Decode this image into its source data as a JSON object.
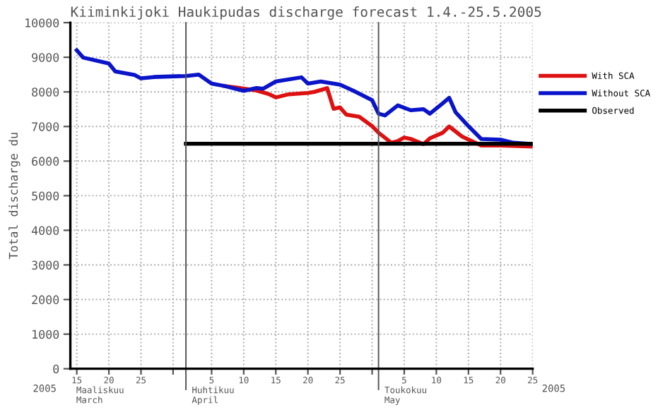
{
  "chart_data": {
    "type": "line",
    "title": "Kiiminkijoki Haukipudas discharge forecast 1.4.-25.5.2005",
    "ylabel": "Total discharge du",
    "series": [
      {
        "name": "With SCA",
        "color": "#dd1111",
        "x": [
          "2005-04-07",
          "2005-04-09",
          "2005-04-12",
          "2005-04-14",
          "2005-04-15",
          "2005-04-17",
          "2005-04-20",
          "2005-04-21",
          "2005-04-23",
          "2005-04-24",
          "2005-04-25",
          "2005-04-26",
          "2005-04-28",
          "2005-04-30",
          "2005-05-01",
          "2005-05-03",
          "2005-05-04",
          "2005-05-05",
          "2005-05-06",
          "2005-05-08",
          "2005-05-09",
          "2005-05-11",
          "2005-05-12",
          "2005-05-14",
          "2005-05-17",
          "2005-05-20",
          "2005-05-25"
        ],
        "values": [
          8170,
          8120,
          8040,
          7930,
          7840,
          7930,
          7970,
          8000,
          8110,
          7510,
          7550,
          7340,
          7280,
          7010,
          6820,
          6530,
          6580,
          6680,
          6640,
          6490,
          6660,
          6820,
          7000,
          6710,
          6450,
          6450,
          6420
        ]
      },
      {
        "name": "Without SCA",
        "color": "#0a14c8",
        "x": [
          "2005-03-15",
          "2005-03-16",
          "2005-03-20",
          "2005-03-21",
          "2005-03-24",
          "2005-03-25",
          "2005-03-27",
          "2005-04-01",
          "2005-04-03",
          "2005-04-05",
          "2005-04-07",
          "2005-04-10",
          "2005-04-12",
          "2005-04-13",
          "2005-04-15",
          "2005-04-19",
          "2005-04-20",
          "2005-04-22",
          "2005-04-25",
          "2005-04-27",
          "2005-04-30",
          "2005-05-01",
          "2005-05-02",
          "2005-05-04",
          "2005-05-06",
          "2005-05-08",
          "2005-05-09",
          "2005-05-11",
          "2005-05-12",
          "2005-05-13",
          "2005-05-15",
          "2005-05-17",
          "2005-05-20",
          "2005-05-22",
          "2005-05-25"
        ],
        "values": [
          9200,
          8990,
          8820,
          8590,
          8490,
          8390,
          8430,
          8460,
          8500,
          8240,
          8170,
          8030,
          8110,
          8090,
          8300,
          8420,
          8240,
          8300,
          8210,
          8040,
          7760,
          7370,
          7320,
          7610,
          7470,
          7500,
          7370,
          7670,
          7830,
          7410,
          7010,
          6640,
          6620,
          6530,
          6490
        ]
      },
      {
        "name": "Observed",
        "color": "#000000",
        "x": [
          "2005-04-01",
          "2005-05-25"
        ],
        "values": [
          6500,
          6500
        ]
      }
    ],
    "xlim": [
      "2005-03-14",
      "2005-05-25"
    ],
    "xticks": [
      {
        "value": "2005-03-15",
        "label": "15"
      },
      {
        "value": "2005-03-20",
        "label": "20"
      },
      {
        "value": "2005-03-25",
        "label": "25"
      },
      {
        "value": "2005-03-30",
        "label": null
      },
      {
        "value": "2005-04-05",
        "label": "5"
      },
      {
        "value": "2005-04-10",
        "label": "10"
      },
      {
        "value": "2005-04-15",
        "label": "15"
      },
      {
        "value": "2005-04-20",
        "label": "20"
      },
      {
        "value": "2005-04-25",
        "label": "25"
      },
      {
        "value": "2005-04-30",
        "label": null
      },
      {
        "value": "2005-05-05",
        "label": "5"
      },
      {
        "value": "2005-05-10",
        "label": "10"
      },
      {
        "value": "2005-05-15",
        "label": "15"
      },
      {
        "value": "2005-05-20",
        "label": "20"
      },
      {
        "value": "2005-05-25",
        "label": "25"
      }
    ],
    "ylim": [
      0,
      10000
    ],
    "yticks": [
      0,
      1000,
      2000,
      3000,
      4000,
      5000,
      6000,
      7000,
      8000,
      9000,
      10000
    ],
    "ref_lines": [
      {
        "axis": "x",
        "value": "2005-04-01",
        "label": null,
        "color": "#555555"
      },
      {
        "axis": "x",
        "value": "2005-05-01",
        "label": null,
        "color": "#555555"
      }
    ],
    "annotations": [
      "2005",
      "2005",
      "Maaliskuu\nMarch",
      "Huhtikuu\nApril",
      "Toukokuu\nMay"
    ],
    "grid": true,
    "legend": "right",
    "line_style": "solid",
    "marker": "none"
  }
}
